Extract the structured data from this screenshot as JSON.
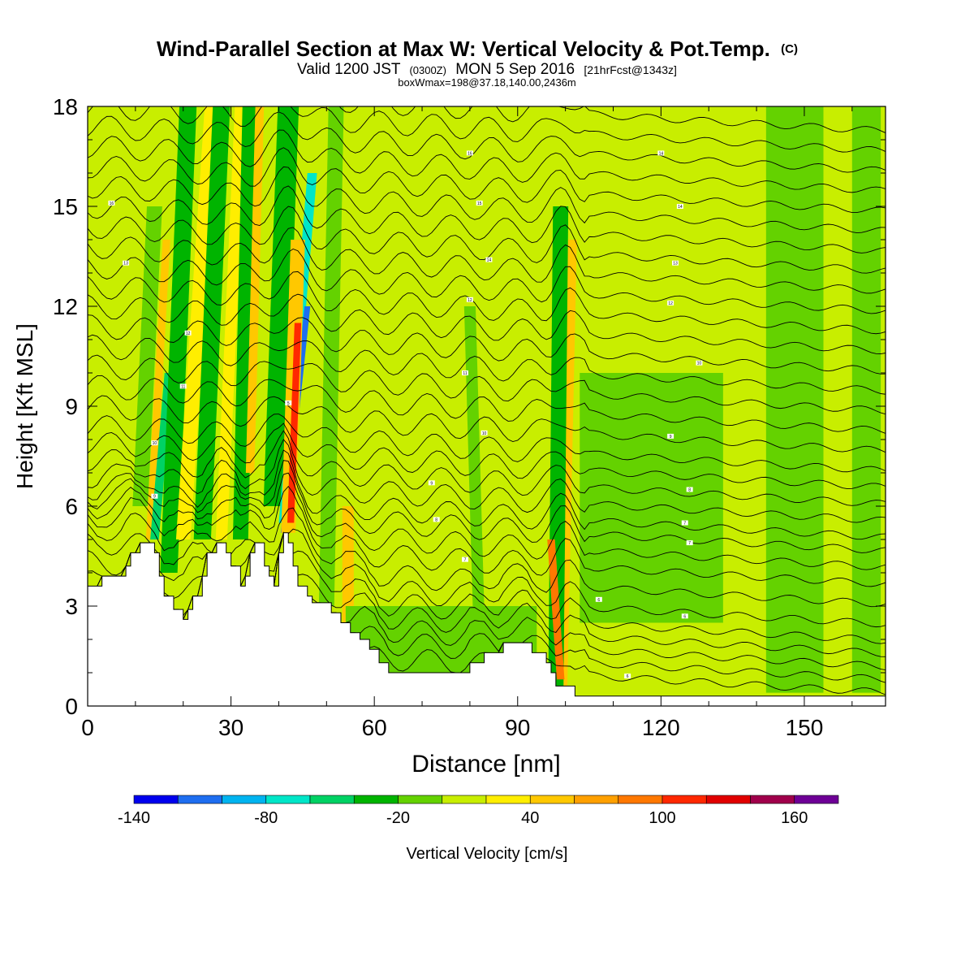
{
  "header": {
    "title_main": "Wind-Parallel Section at Max W: Vertical Velocity & Pot.Temp.",
    "title_mark": "(C)",
    "valid_a": "Valid 1200 JST",
    "valid_b": "(0300Z)",
    "valid_c": "MON 5 Sep 2016",
    "valid_d": "[21hrFcst@1343z]",
    "box_info": "boxWmax=198@37.18,140.00,2436m"
  },
  "chart_data": {
    "type": "heatmap",
    "xlabel": "Distance [nm]",
    "ylabel": "Height [Kft MSL]",
    "xlim": [
      0,
      167
    ],
    "ylim": [
      0,
      18
    ],
    "x_ticks": [
      0,
      30,
      60,
      90,
      120,
      150
    ],
    "x_tick_labels": [
      "0",
      "30",
      "60",
      "90",
      "120",
      "150"
    ],
    "y_ticks": [
      0,
      3,
      6,
      9,
      12,
      15,
      18
    ],
    "y_tick_labels": [
      "0",
      "3",
      "6",
      "9",
      "12",
      "15",
      "18"
    ],
    "colorbar": {
      "label": "Vertical Velocity [cm/s]",
      "levels": [
        -140,
        -120,
        -100,
        -80,
        -60,
        -40,
        -20,
        0,
        20,
        40,
        60,
        80,
        100,
        120,
        140,
        160,
        180
      ],
      "tick_labels": [
        "-140",
        "-80",
        "-20",
        "40",
        "100",
        "160"
      ],
      "tick_values": [
        -140,
        -80,
        -20,
        40,
        100,
        160
      ],
      "colors": [
        "#0000ee",
        "#1e6ef0",
        "#00b4f0",
        "#00e6c8",
        "#00d264",
        "#00b400",
        "#64d200",
        "#c8ee00",
        "#ffee00",
        "#ffc800",
        "#ffa000",
        "#ff7800",
        "#ff2800",
        "#e10000",
        "#a0004b",
        "#6e0096"
      ]
    },
    "background_velocity": 5,
    "velocity_bands": [
      {
        "x_top": 14,
        "x_bottom": 11,
        "y_top": 15,
        "y_bottom": 6,
        "half_width": 1.6,
        "value": -10
      },
      {
        "x_top": 16.5,
        "x_bottom": 13,
        "y_top": 14,
        "y_bottom": 5,
        "half_width": 0.8,
        "value": 50
      },
      {
        "x_top": 17,
        "x_bottom": 14,
        "y_top": 10,
        "y_bottom": 5,
        "half_width": 0.9,
        "value": -50
      },
      {
        "x_top": 21,
        "x_bottom": 17,
        "y_top": 18,
        "y_bottom": 4,
        "half_width": 1.8,
        "value": -30
      },
      {
        "x_top": 26,
        "x_bottom": 20,
        "y_top": 18,
        "y_bottom": 5,
        "half_width": 1.5,
        "value": 30
      },
      {
        "x_top": 28,
        "x_bottom": 24,
        "y_top": 18,
        "y_bottom": 5,
        "half_width": 1.8,
        "value": -30
      },
      {
        "x_top": 32,
        "x_bottom": 28,
        "y_top": 18,
        "y_bottom": 5,
        "half_width": 1.2,
        "value": 30
      },
      {
        "x_top": 34,
        "x_bottom": 32,
        "y_top": 18,
        "y_bottom": 5,
        "half_width": 1.6,
        "value": -30
      },
      {
        "x_top": 36,
        "x_bottom": 34,
        "y_top": 18,
        "y_bottom": 7,
        "half_width": 0.9,
        "value": 50
      },
      {
        "x_top": 42,
        "x_bottom": 39,
        "y_top": 18,
        "y_bottom": 6,
        "half_width": 2.2,
        "value": -30
      },
      {
        "x_top": 47,
        "x_bottom": 41,
        "y_top": 16,
        "y_bottom": 5.5,
        "half_width": 1.0,
        "value": -70
      },
      {
        "x_top": 46,
        "x_bottom": 41,
        "y_top": 12,
        "y_bottom": 5.2,
        "half_width": 0.6,
        "value": -110
      },
      {
        "x_top": 44,
        "x_bottom": 42,
        "y_top": 14,
        "y_bottom": 5.2,
        "half_width": 1.5,
        "value": 50
      },
      {
        "x_top": 44,
        "x_bottom": 42.5,
        "y_top": 11.5,
        "y_bottom": 5.5,
        "half_width": 0.7,
        "value": 110
      },
      {
        "x_top": 52,
        "x_bottom": 50,
        "y_top": 18,
        "y_bottom": 3,
        "half_width": 1.6,
        "value": -20
      },
      {
        "x_top": 54.5,
        "x_bottom": 54.5,
        "y_top": 6,
        "y_bottom": 2.5,
        "half_width": 1.2,
        "value": 40
      },
      {
        "x_top": 80,
        "x_bottom": 82,
        "y_top": 12,
        "y_bottom": 2,
        "half_width": 1.2,
        "value": -20
      },
      {
        "x_top": 101,
        "x_bottom": 99,
        "y_top": 14,
        "y_bottom": 0.6,
        "half_width": 1.4,
        "value": 50
      },
      {
        "x_top": 99,
        "x_bottom": 98,
        "y_top": 15,
        "y_bottom": 0.6,
        "half_width": 1.6,
        "value": -40
      },
      {
        "x_top": 97,
        "x_bottom": 99,
        "y_top": 5,
        "y_bottom": 0.8,
        "half_width": 0.8,
        "value": 80
      },
      {
        "x_top": 74,
        "x_bottom": 74,
        "y_top": 3,
        "y_bottom": 1,
        "half_width": 20,
        "value": -10
      },
      {
        "x_top": 118,
        "x_bottom": 118,
        "y_top": 10,
        "y_bottom": 2.5,
        "half_width": 15,
        "value": -10
      },
      {
        "x_top": 148,
        "x_bottom": 148,
        "y_top": 18,
        "y_bottom": 0.4,
        "half_width": 6,
        "value": -10
      },
      {
        "x_top": 163,
        "x_bottom": 163,
        "y_top": 18,
        "y_bottom": 0.4,
        "half_width": 3,
        "value": -10
      }
    ],
    "terrain_kft": [
      [
        0,
        3.6
      ],
      [
        3,
        3.6
      ],
      [
        3,
        3.9
      ],
      [
        8,
        3.9
      ],
      [
        8,
        4.2
      ],
      [
        9,
        4.2
      ],
      [
        9,
        4.6
      ],
      [
        11,
        4.6
      ],
      [
        11,
        4.9
      ],
      [
        14,
        4.9
      ],
      [
        14,
        4.6
      ],
      [
        15,
        4.6
      ],
      [
        15,
        3.9
      ],
      [
        16,
        3.9
      ],
      [
        16,
        3.3
      ],
      [
        18,
        3.3
      ],
      [
        18,
        2.9
      ],
      [
        20,
        2.9
      ],
      [
        20,
        2.6
      ],
      [
        21,
        2.6
      ],
      [
        21,
        2.9
      ],
      [
        22,
        2.9
      ],
      [
        22,
        3.3
      ],
      [
        24,
        3.3
      ],
      [
        24,
        3.9
      ],
      [
        25,
        3.9
      ],
      [
        25,
        4.6
      ],
      [
        27,
        4.6
      ],
      [
        27,
        4.9
      ],
      [
        29,
        4.9
      ],
      [
        29,
        4.6
      ],
      [
        30,
        4.6
      ],
      [
        30,
        4.2
      ],
      [
        32,
        4.2
      ],
      [
        32,
        3.6
      ],
      [
        33,
        3.6
      ],
      [
        33,
        3.9
      ],
      [
        34,
        3.9
      ],
      [
        34,
        4.6
      ],
      [
        35,
        4.6
      ],
      [
        35,
        4.9
      ],
      [
        37,
        4.9
      ],
      [
        37,
        4.2
      ],
      [
        38,
        4.2
      ],
      [
        38,
        3.9
      ],
      [
        39,
        3.9
      ],
      [
        39,
        3.6
      ],
      [
        40,
        3.6
      ],
      [
        40,
        4.6
      ],
      [
        41,
        4.6
      ],
      [
        41,
        5.2
      ],
      [
        42,
        5.2
      ],
      [
        42,
        4.9
      ],
      [
        43,
        4.9
      ],
      [
        43,
        4.2
      ],
      [
        44,
        4.2
      ],
      [
        44,
        3.6
      ],
      [
        46,
        3.6
      ],
      [
        46,
        3.3
      ],
      [
        47,
        3.3
      ],
      [
        47,
        3.1
      ],
      [
        51,
        3.1
      ],
      [
        51,
        2.8
      ],
      [
        53,
        2.8
      ],
      [
        53,
        2.5
      ],
      [
        55,
        2.5
      ],
      [
        55,
        2.2
      ],
      [
        57,
        2.2
      ],
      [
        57,
        2.0
      ],
      [
        59,
        2.0
      ],
      [
        59,
        1.7
      ],
      [
        61,
        1.7
      ],
      [
        61,
        1.3
      ],
      [
        63,
        1.3
      ],
      [
        63,
        1.0
      ],
      [
        80,
        1.0
      ],
      [
        80,
        1.3
      ],
      [
        83,
        1.3
      ],
      [
        83,
        1.6
      ],
      [
        87,
        1.6
      ],
      [
        87,
        1.9
      ],
      [
        93,
        1.9
      ],
      [
        93,
        1.6
      ],
      [
        96,
        1.6
      ],
      [
        96,
        1.3
      ],
      [
        97,
        1.3
      ],
      [
        97,
        1.0
      ],
      [
        98,
        1.0
      ],
      [
        98,
        0.6
      ],
      [
        102,
        0.6
      ],
      [
        102,
        0.3
      ],
      [
        167,
        0.3
      ]
    ],
    "theta_base_heights_kft": [
      0.8,
      1.4,
      2.0,
      2.6,
      3.2,
      3.8,
      4.4,
      5.0,
      5.5,
      6.0,
      6.4,
      6.9,
      7.4,
      7.9,
      8.4,
      9.0,
      9.6,
      10.2,
      10.8,
      11.4,
      12.0,
      12.6,
      13.2,
      13.8,
      14.4,
      15.0,
      15.6,
      16.2,
      16.8,
      17.4,
      18.0,
      18.6
    ]
  },
  "contour_labels": [
    "16",
    "16",
    "15",
    "14",
    "14",
    "14",
    "13",
    "13",
    "12",
    "12",
    "12",
    "11",
    "11",
    "10",
    "10",
    "10",
    "9",
    "9",
    "9",
    "8",
    "8",
    "7",
    "7",
    "7",
    "6",
    "6",
    "6",
    "5"
  ]
}
